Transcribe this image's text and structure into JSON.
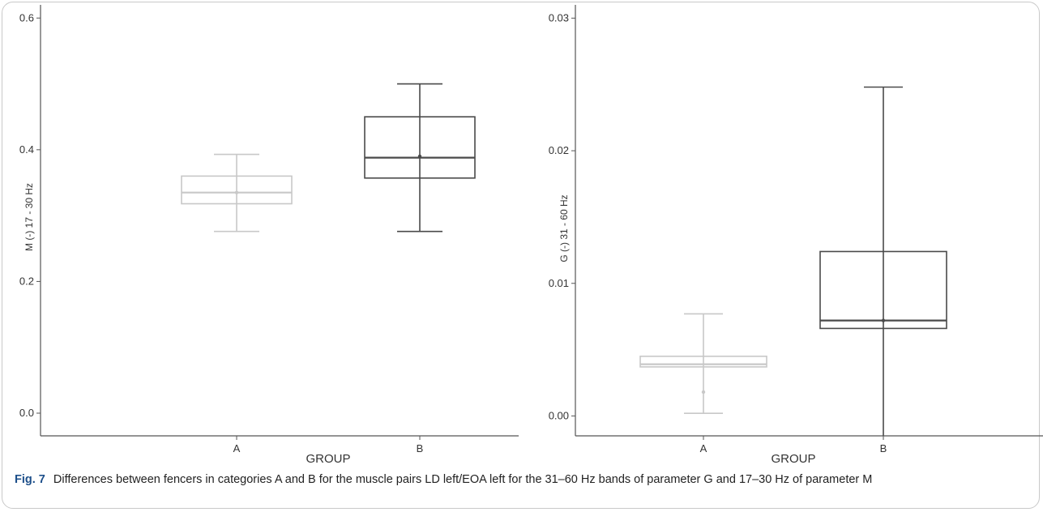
{
  "caption": {
    "label": "Fig. 7",
    "text": "Differences between fencers in categories A and B for the muscle pairs LD left/EOA left for the 31–60 Hz bands of parameter G and 17–30 Hz of parameter M"
  },
  "chart_data": [
    {
      "type": "boxplot",
      "xlabel": "GROUP",
      "ylabel": "M (-) 17 - 30 Hz",
      "ylim": [
        0,
        0.62
      ],
      "yticks": [
        0.0,
        0.2,
        0.4,
        0.6
      ],
      "ytick_labels": [
        "0.0",
        "0.2",
        "0.4",
        "0.6"
      ],
      "grid": false,
      "categories": [
        "A",
        "B"
      ],
      "boxes": [
        {
          "group": "A",
          "whisker_low": 0.276,
          "q1": 0.318,
          "median": 0.335,
          "q3": 0.36,
          "whisker_high": 0.393,
          "mean": 0.335,
          "color": "#c8c8c8"
        },
        {
          "group": "B",
          "whisker_low": 0.276,
          "q1": 0.357,
          "median": 0.388,
          "q3": 0.45,
          "whisker_high": 0.5,
          "mean": 0.39,
          "color": "#4a4a4a"
        }
      ]
    },
    {
      "type": "boxplot",
      "xlabel": "GROUP",
      "ylabel": "G (-) 31 - 60 Hz",
      "ylim": [
        -0.0015,
        0.031
      ],
      "yticks": [
        0.0,
        0.01,
        0.02,
        0.03
      ],
      "ytick_labels": [
        "0.00",
        "0.01",
        "0.02",
        "0.03"
      ],
      "grid": false,
      "categories": [
        "A",
        "B"
      ],
      "boxes": [
        {
          "group": "A",
          "whisker_low": 0.0002,
          "q1": 0.0037,
          "median": 0.0039,
          "q3": 0.0045,
          "whisker_high": 0.0077,
          "mean": 0.0018,
          "color": "#c8c8c8"
        },
        {
          "group": "B",
          "whisker_low": -0.0015,
          "q1": 0.0066,
          "median": 0.0072,
          "q3": 0.0124,
          "whisker_high": 0.0248,
          "mean": 0.0072,
          "color": "#4a4a4a"
        }
      ]
    }
  ]
}
